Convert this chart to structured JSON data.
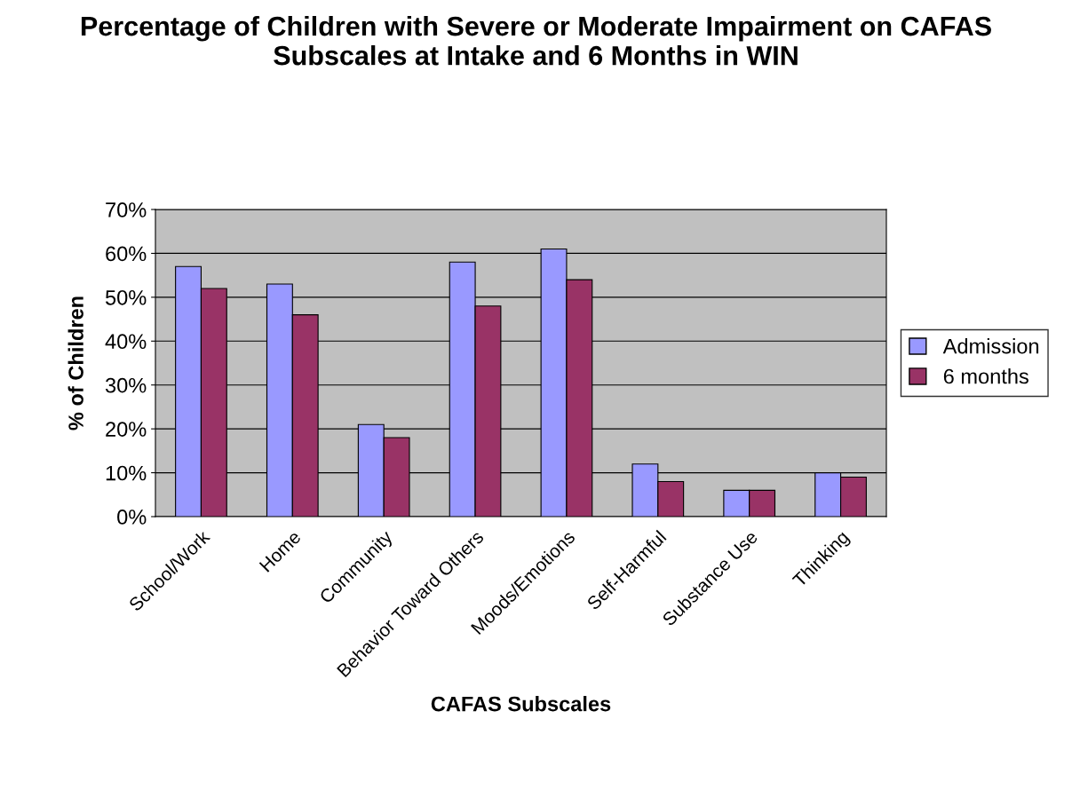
{
  "chart_data": {
    "type": "bar",
    "title": "Percentage of Children with Severe or Moderate Impairment on CAFAS Subscales at Intake and 6 Months in WIN",
    "xlabel": "CAFAS Subscales",
    "ylabel": "% of Children",
    "categories": [
      "School/Work",
      "Home",
      "Community",
      "Behavior Toward Others",
      "Moods/Emotions",
      "Self-Harmful",
      "Substance Use",
      "Thinking"
    ],
    "series": [
      {
        "name": "Admission",
        "color": "#9999ff",
        "values": [
          57,
          53,
          21,
          58,
          61,
          12,
          6,
          10
        ]
      },
      {
        "name": "6 months",
        "color": "#993366",
        "values": [
          52,
          46,
          18,
          48,
          54,
          8,
          6,
          9
        ]
      }
    ],
    "ylim": [
      0,
      70
    ],
    "yticks": [
      {
        "value": 0,
        "label": "0%"
      },
      {
        "value": 10,
        "label": "10%"
      },
      {
        "value": 20,
        "label": "20%"
      },
      {
        "value": 30,
        "label": "30%"
      },
      {
        "value": 40,
        "label": "40%"
      },
      {
        "value": 50,
        "label": "50%"
      },
      {
        "value": 60,
        "label": "60%"
      },
      {
        "value": 70,
        "label": "70%"
      }
    ],
    "grid": "y",
    "legend": "right"
  }
}
